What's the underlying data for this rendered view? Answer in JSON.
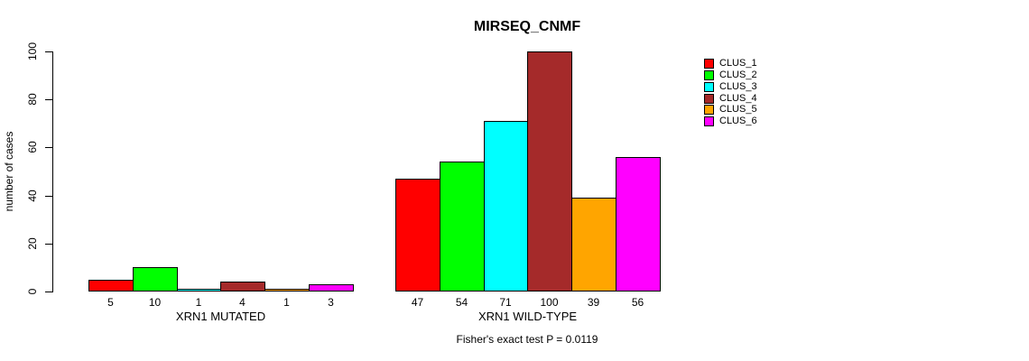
{
  "chart_data": {
    "type": "bar",
    "title": "MIRSEQ_CNMF",
    "xlabel": "",
    "ylabel": "number of cases",
    "ylim": [
      0,
      100
    ],
    "yticks": [
      0,
      20,
      40,
      60,
      80,
      100
    ],
    "grid": false,
    "legend_position": "right",
    "categories": [
      "XRN1 MUTATED",
      "XRN1 WILD-TYPE"
    ],
    "series": [
      {
        "name": "CLUS_1",
        "color": "#FF0000",
        "values": [
          5,
          47
        ]
      },
      {
        "name": "CLUS_2",
        "color": "#00FF00",
        "values": [
          10,
          54
        ]
      },
      {
        "name": "CLUS_3",
        "color": "#00FFFF",
        "values": [
          1,
          71
        ]
      },
      {
        "name": "CLUS_4",
        "color": "#A52A2A",
        "values": [
          4,
          100
        ]
      },
      {
        "name": "CLUS_5",
        "color": "#FFA500",
        "values": [
          1,
          39
        ]
      },
      {
        "name": "CLUS_6",
        "color": "#FF00FF",
        "values": [
          3,
          56
        ]
      }
    ],
    "bar_value_labels": [
      [
        "5",
        "10",
        "1",
        "4",
        "1",
        "3"
      ],
      [
        "47",
        "54",
        "71",
        "100",
        "39",
        "56"
      ]
    ],
    "annotation": "Fisher's exact test P = 0.0119",
    "axis_color": "#000000",
    "background_color": "#FFFFFF"
  }
}
